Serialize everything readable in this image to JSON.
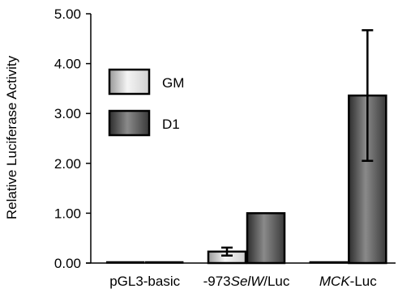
{
  "chart_data": {
    "type": "bar",
    "title": "",
    "xlabel": "",
    "ylabel": "Relative Luciferase Activity",
    "ylim": [
      0,
      5
    ],
    "yticks": [
      "0.00",
      "1.00",
      "2.00",
      "3.00",
      "4.00",
      "5.00"
    ],
    "categories": [
      {
        "parts": [
          {
            "text": "pGL3-basic",
            "italic": false
          }
        ]
      },
      {
        "parts": [
          {
            "text": "-973",
            "italic": false
          },
          {
            "text": "SelW",
            "italic": true
          },
          {
            "text": "/Luc",
            "italic": false
          }
        ]
      },
      {
        "parts": [
          {
            "text": "MCK",
            "italic": true
          },
          {
            "text": "-Luc",
            "italic": false
          }
        ]
      }
    ],
    "series": [
      {
        "name": "GM",
        "values": [
          0.0,
          0.23,
          0.0
        ],
        "errors": [
          0.0,
          0.08,
          0.0
        ]
      },
      {
        "name": "D1",
        "values": [
          0.0,
          1.0,
          3.36
        ],
        "errors": [
          0.0,
          0.0,
          1.31
        ]
      }
    ],
    "legend": {
      "placement": "top-left"
    },
    "grid": false,
    "colors": {
      "GM": "#d8d8d8",
      "D1": "#555555"
    }
  }
}
